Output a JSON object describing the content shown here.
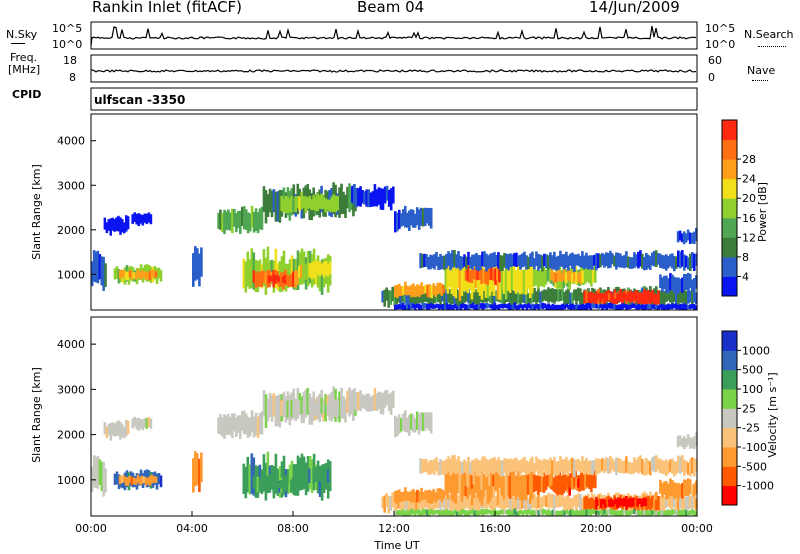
{
  "header": {
    "station": "Rankin Inlet (fitACF)",
    "beam": "Beam 04",
    "date": "14/Jun/2009"
  },
  "left_labels": {
    "nsky": "N.Sky",
    "freq": "Freq.",
    "freq_unit": "[MHz]",
    "cpid": "CPID"
  },
  "right_labels": {
    "nsearch": "N.Search",
    "nave": "Nave"
  },
  "noise_panel": {
    "tick_top": "10^5",
    "tick_bottom": "10^0",
    "right_tick_top": "10^5",
    "right_tick_bottom": "10^0"
  },
  "freq_panel": {
    "left_top": "18",
    "left_bottom": "8",
    "right_top": "60",
    "right_bottom": "0"
  },
  "cpid_panel": {
    "text": "ulfscan -3350"
  },
  "colors": {
    "power": [
      "#0a14f0",
      "#2a5ec9",
      "#3d7d3b",
      "#4fa653",
      "#8fd02e",
      "#f0e01c",
      "#ff9e1a",
      "#ff6e12",
      "#ff2a10"
    ],
    "velocity": [
      "#ff0000",
      "#ff5a00",
      "#ff9a30",
      "#fbc27a",
      "#c8c8c0",
      "#7bd34a",
      "#3b9e5a",
      "#3166b8",
      "#1830c8"
    ]
  },
  "chart_data": [
    {
      "type": "heatmap",
      "name": "power",
      "ylabel": "Slant Range [km]",
      "yticks": [
        1000,
        2000,
        3000,
        4000
      ],
      "ylim": [
        200,
        4600
      ],
      "xlim": [
        0,
        24
      ],
      "colorbar_label": "Power [dB]",
      "colorbar_ticks": [
        "4",
        "8",
        "12",
        "16",
        "20",
        "24",
        "28"
      ],
      "colorbar_range": [
        0,
        32
      ]
    },
    {
      "type": "heatmap",
      "name": "velocity",
      "ylabel": "Slant Range [km]",
      "yticks": [
        1000,
        2000,
        3000,
        4000
      ],
      "ylim": [
        200,
        4600
      ],
      "xlim": [
        0,
        24
      ],
      "xlabel": "Time UT",
      "xticks": [
        "00:00",
        "04:00",
        "08:00",
        "12:00",
        "16:00",
        "20:00",
        "00:00"
      ],
      "colorbar_label": "Velocity [m s⁻¹]",
      "colorbar_ticks": [
        "-1000",
        "-500",
        "-100",
        "-25",
        "25",
        "100",
        "500",
        "1000"
      ]
    }
  ]
}
